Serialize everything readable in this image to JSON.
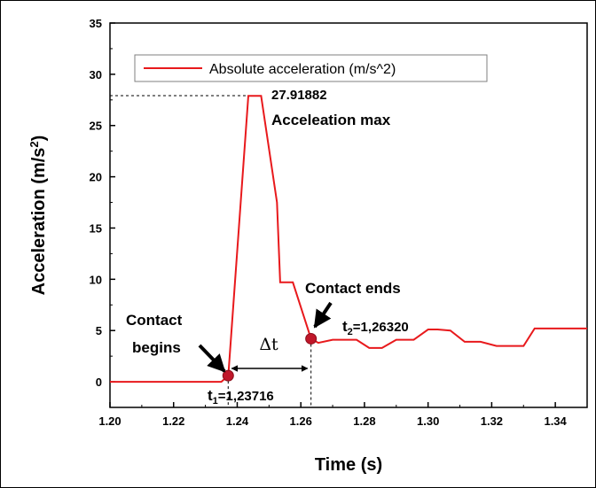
{
  "chart_data": {
    "type": "line",
    "title": "",
    "xlabel": "Time (s)",
    "ylabel": "Acceleration (m/s",
    "ylabel_sup": "2",
    "ylabel_close": ")",
    "xlim": [
      1.2,
      1.35
    ],
    "ylim": [
      -2.5,
      35
    ],
    "x_ticks": [
      1.2,
      1.22,
      1.24,
      1.26,
      1.28,
      1.3,
      1.32,
      1.34
    ],
    "x_tick_labels": [
      "1.20",
      "1.22",
      "1.24",
      "1.26",
      "1.28",
      "1.30",
      "1.32",
      "1.34"
    ],
    "y_ticks": [
      0,
      5,
      10,
      15,
      20,
      25,
      30,
      35
    ],
    "y_tick_labels": [
      "0",
      "5",
      "10",
      "15",
      "20",
      "25",
      "30",
      "35"
    ],
    "grid": false,
    "legend_position": "top-center",
    "colors": {
      "series": "#e8191c",
      "marker": "#c0172a",
      "text": "#000000"
    },
    "series": [
      {
        "name": "Absolute acceleration (m/s^2)",
        "x": [
          1.2,
          1.235,
          1.2372,
          1.2435,
          1.2445,
          1.2475,
          1.2525,
          1.2535,
          1.2575,
          1.2632,
          1.2655,
          1.27,
          1.2775,
          1.2815,
          1.2855,
          1.29,
          1.2955,
          1.3,
          1.303,
          1.307,
          1.3115,
          1.3165,
          1.3215,
          1.3265,
          1.33,
          1.3335,
          1.3375,
          1.35
        ],
        "y": [
          0.0,
          0.0,
          0.6,
          27.9,
          27.9,
          27.9,
          17.5,
          9.7,
          9.7,
          4.2,
          3.8,
          4.1,
          4.1,
          3.3,
          3.3,
          4.1,
          4.1,
          5.1,
          5.1,
          5.0,
          3.9,
          3.9,
          3.5,
          3.5,
          3.5,
          5.2,
          5.2,
          5.2
        ]
      }
    ],
    "annotations": {
      "max_value": "27.91882",
      "max_label": "Acceleation max",
      "contact_begins_line1": "Contact",
      "contact_begins_line2": "begins",
      "contact_ends": "Contact ends",
      "t1_symbol": "t",
      "t1_sub": "1",
      "t1_value": "=1,23716",
      "t2_symbol": "t",
      "t2_sub": "2",
      "t2_value": "=1,26320",
      "delta": "Δt"
    },
    "points": {
      "max": [
        1.2435,
        27.91882
      ],
      "t1": [
        1.23716,
        0.6
      ],
      "t2": [
        1.2632,
        4.2
      ]
    }
  }
}
